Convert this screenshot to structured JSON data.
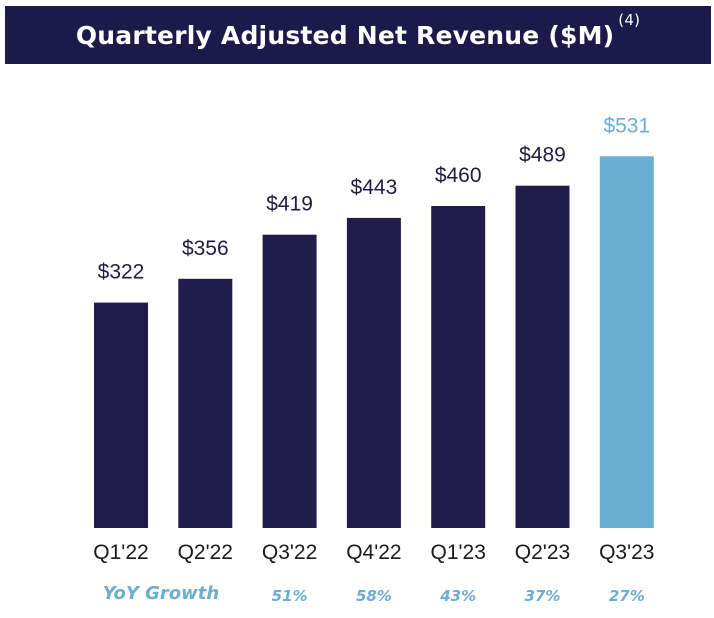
{
  "chart_data": {
    "type": "bar",
    "title": "Quarterly Adjusted Net Revenue ($M)",
    "title_footnote": "(4)",
    "categories": [
      "Q1'22",
      "Q2'22",
      "Q3'22",
      "Q4'22",
      "Q1'23",
      "Q2'23",
      "Q3'23"
    ],
    "values": [
      322,
      356,
      419,
      443,
      460,
      489,
      531
    ],
    "value_labels": [
      "$322",
      "$356",
      "$419",
      "$443",
      "$460",
      "$489",
      "$531"
    ],
    "highlight_index": 6,
    "xlabel": "",
    "ylabel": "",
    "grid": false,
    "yoy_growth": {
      "label": "YoY Growth",
      "values": [
        "51%",
        "58%",
        "43%",
        "37%",
        "27%"
      ],
      "start_index": 2
    }
  },
  "colors": {
    "title_bg": "#1b1a4a",
    "bar": "#211c4a",
    "bar_highlight": "#6aaed1",
    "value_text": "#1f1d3f",
    "value_text_highlight": "#6aaed1",
    "growth_text": "#6aaed1"
  }
}
